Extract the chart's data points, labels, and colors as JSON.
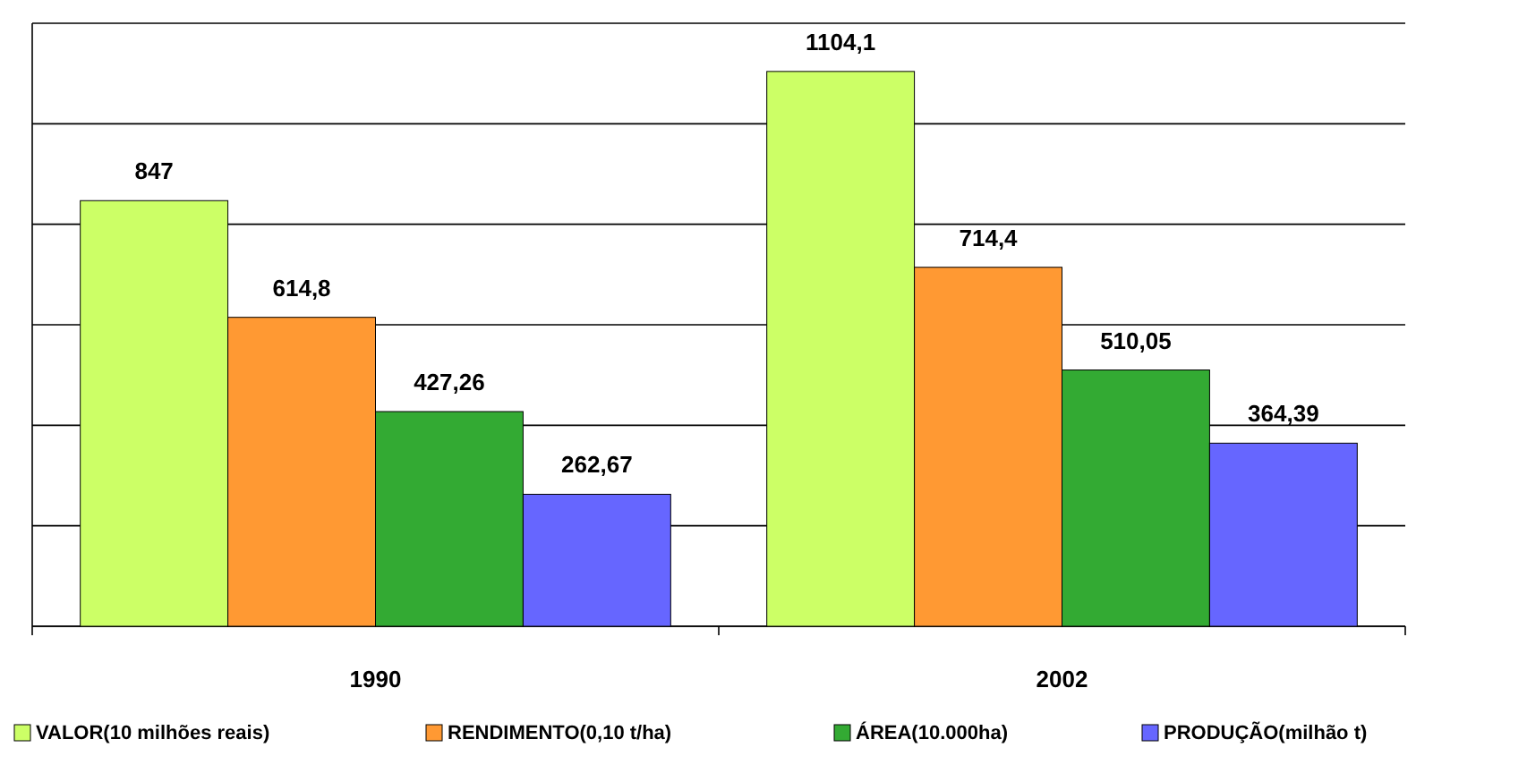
{
  "chart_data": {
    "type": "bar",
    "categories": [
      "1990",
      "2002"
    ],
    "series": [
      {
        "name": "VALOR(10 milhões reais)",
        "color": "#ccff66",
        "values": [
          847,
          1104.1
        ],
        "value_labels": [
          "847",
          "1104,1"
        ]
      },
      {
        "name": "RENDIMENTO(0,10 t/ha)",
        "color": "#ff9933",
        "values": [
          614.8,
          714.4
        ],
        "value_labels": [
          "614,8",
          "714,4"
        ]
      },
      {
        "name": "ÁREA(10.000ha)",
        "color": "#33aa33",
        "values": [
          427.26,
          510.05
        ],
        "value_labels": [
          "427,26",
          "510,05"
        ]
      },
      {
        "name": "PRODUÇÃO(milhão t)",
        "color": "#6666ff",
        "values": [
          262.67,
          364.39
        ],
        "value_labels": [
          "262,67",
          "364,39"
        ]
      }
    ],
    "ylim": [
      0,
      1200
    ],
    "yticks": [
      {
        "value": 0,
        "label": null
      },
      {
        "value": 200,
        "label": null
      },
      {
        "value": 400,
        "label": null
      },
      {
        "value": 600,
        "label": null
      },
      {
        "value": 800,
        "label": null
      },
      {
        "value": 1000,
        "label": null
      },
      {
        "value": 1200,
        "label": null
      }
    ],
    "grid": "y",
    "legend": "bottom",
    "tick_labels": "x"
  }
}
